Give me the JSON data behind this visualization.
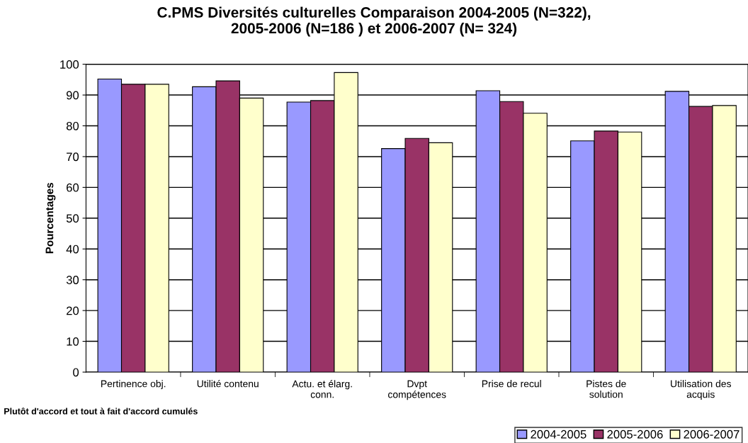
{
  "chart_data": {
    "type": "bar",
    "title": "C.PMS Diversités culturelles Comparaison 2004-2005 (N=322),\n2005-2006 (N=186 ) et 2006-2007 (N= 324)",
    "ylabel": "Pourcentages",
    "categories": [
      "Pertinence obj.",
      "Utilité contenu",
      "Actu. et élarg.\nconn.",
      "Dvpt\ncompétences",
      "Prise de recul",
      "Pistes de\nsolution",
      "Utilisation des\nacquis"
    ],
    "series": [
      {
        "name": "2004-2005",
        "color": "#9999ff",
        "values": [
          95.2,
          92.7,
          87.7,
          72.6,
          91.4,
          75.1,
          91.2
        ]
      },
      {
        "name": "2005-2006",
        "color": "#993366",
        "values": [
          93.5,
          94.6,
          88.2,
          75.9,
          87.9,
          78.3,
          86.3
        ]
      },
      {
        "name": "2006-2007",
        "color": "#ffffcc",
        "values": [
          93.5,
          89.0,
          97.3,
          74.5,
          84.1,
          78.0,
          86.6
        ]
      }
    ],
    "ylim": [
      0,
      100
    ],
    "yticks": [
      0,
      10,
      20,
      30,
      40,
      50,
      60,
      70,
      80,
      90,
      100
    ],
    "grid": "y",
    "legend": "bottom right",
    "annotations": [
      "Plutôt d'accord et tout à fait d'accord cumulés"
    ]
  }
}
